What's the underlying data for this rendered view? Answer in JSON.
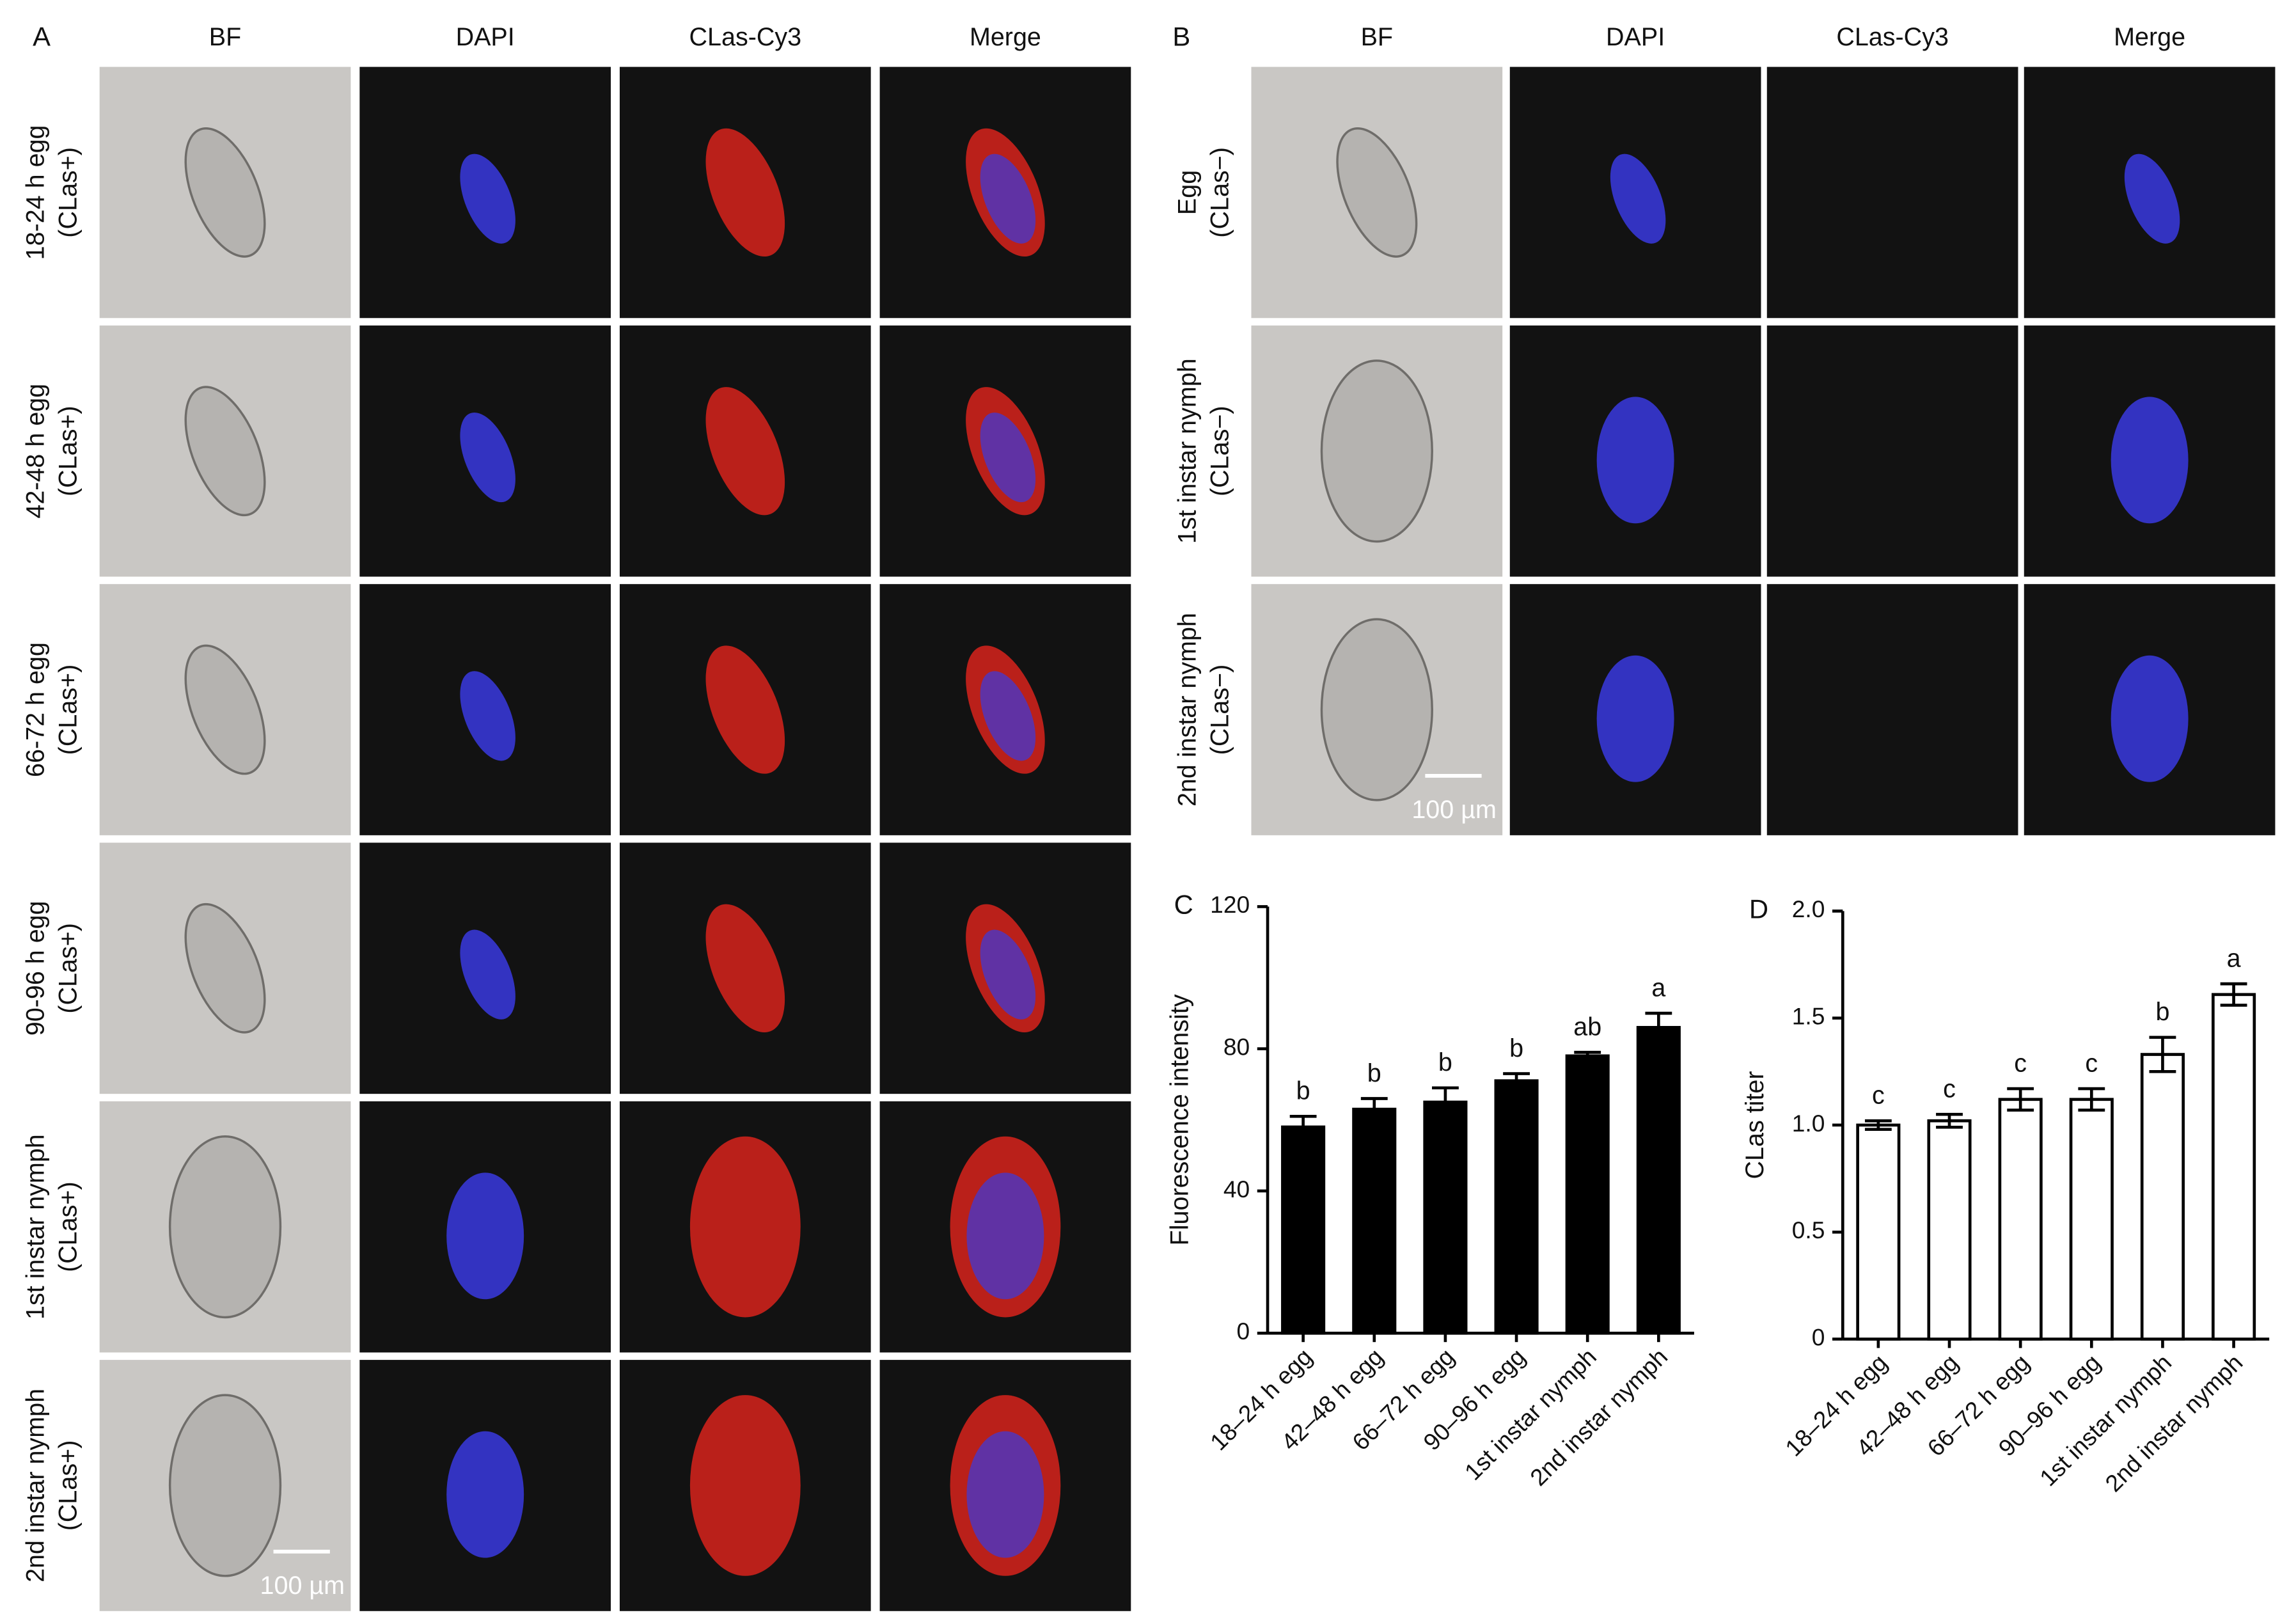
{
  "panel_a": {
    "label": "A",
    "columns": [
      "BF",
      "DAPI",
      "CLas-Cy3",
      "Merge"
    ],
    "rows": [
      [
        "18-24 h egg",
        "(CLas+)"
      ],
      [
        "42-48 h egg",
        "(CLas+)"
      ],
      [
        "66-72 h egg",
        "(CLas+)"
      ],
      [
        "90-96 h egg",
        "(CLas+)"
      ],
      [
        "1st instar nymph",
        "(CLas+)"
      ],
      [
        "2nd instar nymph",
        "(CLas+)"
      ]
    ],
    "scale_bar": "100 µm"
  },
  "panel_b": {
    "label": "B",
    "columns": [
      "BF",
      "DAPI",
      "CLas-Cy3",
      "Merge"
    ],
    "rows": [
      [
        "Egg",
        "(CLas−)"
      ],
      [
        "1st instar nymph",
        "(CLas−)"
      ],
      [
        "2nd instar nymph",
        "(CLas−)"
      ]
    ],
    "scale_bar": "100 µm"
  },
  "chart_data": [
    {
      "type": "bar",
      "panel": "C",
      "ylabel": "Fluorescence intensity",
      "categories": [
        "18–24 h egg",
        "42–48 h egg",
        "66–72 h egg",
        "90–96 h egg",
        "1st instar nymph",
        "2nd instar nymph"
      ],
      "values": [
        58,
        63,
        65,
        71,
        78,
        86
      ],
      "errors": [
        3,
        3,
        4,
        2,
        1,
        4
      ],
      "annotations": [
        "b",
        "b",
        "b",
        "b",
        "ab",
        "a"
      ],
      "color": "#000000",
      "edgecolor": "#000000",
      "ylim": [
        0,
        120
      ],
      "yticks": [
        0,
        40,
        80,
        120
      ]
    },
    {
      "type": "bar",
      "panel": "D",
      "ylabel": "CLas titer",
      "categories": [
        "18–24 h egg",
        "42–48 h egg",
        "66–72 h egg",
        "90–96 h egg",
        "1st instar nymph",
        "2nd instar nymph"
      ],
      "values": [
        1.0,
        1.02,
        1.12,
        1.12,
        1.33,
        1.61
      ],
      "errors": [
        0.02,
        0.03,
        0.05,
        0.05,
        0.08,
        0.05
      ],
      "annotations": [
        "c",
        "c",
        "c",
        "c",
        "b",
        "a"
      ],
      "color": "#ffffff",
      "edgecolor": "#000000",
      "ylim": [
        0,
        2.0
      ],
      "yticks": [
        0,
        0.5,
        {
          "value": 1.0,
          "label": "1.0"
        },
        1.5,
        {
          "value": 2.0,
          "label": "2.0"
        }
      ]
    }
  ]
}
